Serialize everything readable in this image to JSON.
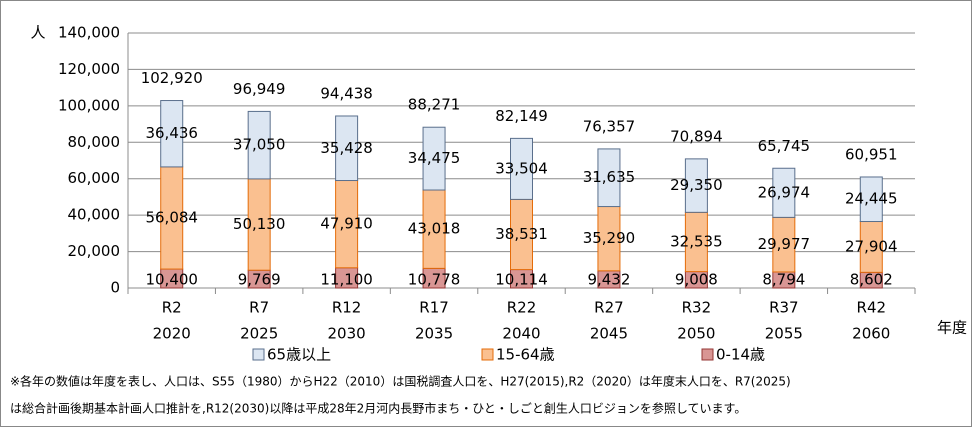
{
  "chart_data": {
    "type": "stacked_bar",
    "y_unit": "人",
    "x_label": "年度",
    "categories": [
      "R2",
      "R7",
      "R12",
      "R17",
      "R22",
      "R27",
      "R32",
      "R37",
      "R42"
    ],
    "years": [
      "2020",
      "2025",
      "2030",
      "2035",
      "2040",
      "2045",
      "2050",
      "2055",
      "2060"
    ],
    "series": [
      {
        "name": "0-14歳",
        "color": "#d99694",
        "border": "#953735",
        "values": [
          10400,
          9769,
          11100,
          10778,
          10114,
          9432,
          9008,
          8794,
          8602
        ],
        "value_labels": [
          "10,400",
          "9,769",
          "11,100",
          "10,778",
          "10,114",
          "9,432",
          "9,008",
          "8,794",
          "8,602"
        ]
      },
      {
        "name": "15-64歳",
        "color": "#fac090",
        "border": "#e46c0a",
        "values": [
          56084,
          50130,
          47910,
          43018,
          38531,
          35290,
          32535,
          29977,
          27904
        ],
        "value_labels": [
          "56,084",
          "50,130",
          "47,910",
          "43,018",
          "38,531",
          "35,290",
          "32,535",
          "29,977",
          "27,904"
        ]
      },
      {
        "name": "65歳以上",
        "color": "#dce6f2",
        "border": "#5a6f8c",
        "values": [
          36436,
          37050,
          35428,
          34475,
          33504,
          31635,
          29350,
          26974,
          24445
        ],
        "value_labels": [
          "36,436",
          "37,050",
          "35,428",
          "34,475",
          "33,504",
          "31,635",
          "29,350",
          "26,974",
          "24,445"
        ]
      }
    ],
    "totals": [
      102920,
      96949,
      94438,
      88271,
      82149,
      76357,
      70894,
      65745,
      60951
    ],
    "total_labels": [
      "102,920",
      "96,949",
      "94,438",
      "88,271",
      "82,149",
      "76,357",
      "70,894",
      "65,745",
      "60,951"
    ],
    "ylim": [
      0,
      140000
    ],
    "yticks": [
      0,
      {
        "value": 20000,
        "label": "20,000"
      },
      {
        "value": 40000,
        "label": "40,000"
      },
      {
        "value": 60000,
        "label": "60,000"
      },
      {
        "value": 80000,
        "label": "80,000"
      },
      {
        "value": 100000,
        "label": "100,000"
      },
      {
        "value": 120000,
        "label": "120,000"
      },
      {
        "value": 140000,
        "label": "140,000"
      }
    ],
    "grid": true,
    "note": [
      "※各年の数値は年度を表し、人口は、S55（1980）からH22（2010）は国税調査人口を、H27(2015),R2（2020）は年度末人口を、R7(2025)",
      "は総合計画後期基本計画人口推計を,R12(2030)以降は平成28年2月河内長野市まち・ひと・しごと創生人口ビジョンを参照しています。"
    ]
  }
}
